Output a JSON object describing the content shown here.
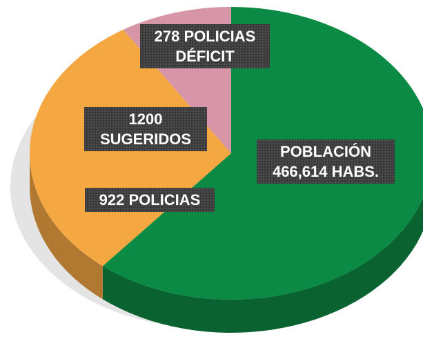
{
  "chart_data": {
    "type": "pie",
    "categories": [
      "POBLACIÓN\n466,614 HABS.",
      "922 POLICIAS",
      "278 POLICIAS\nDÉFICIT"
    ],
    "values": [
      61,
      30,
      9
    ],
    "colors": [
      "#0b8a43",
      "#f5a742",
      "#d696a8"
    ],
    "annotation": "1200\nSUGERIDOS"
  }
}
